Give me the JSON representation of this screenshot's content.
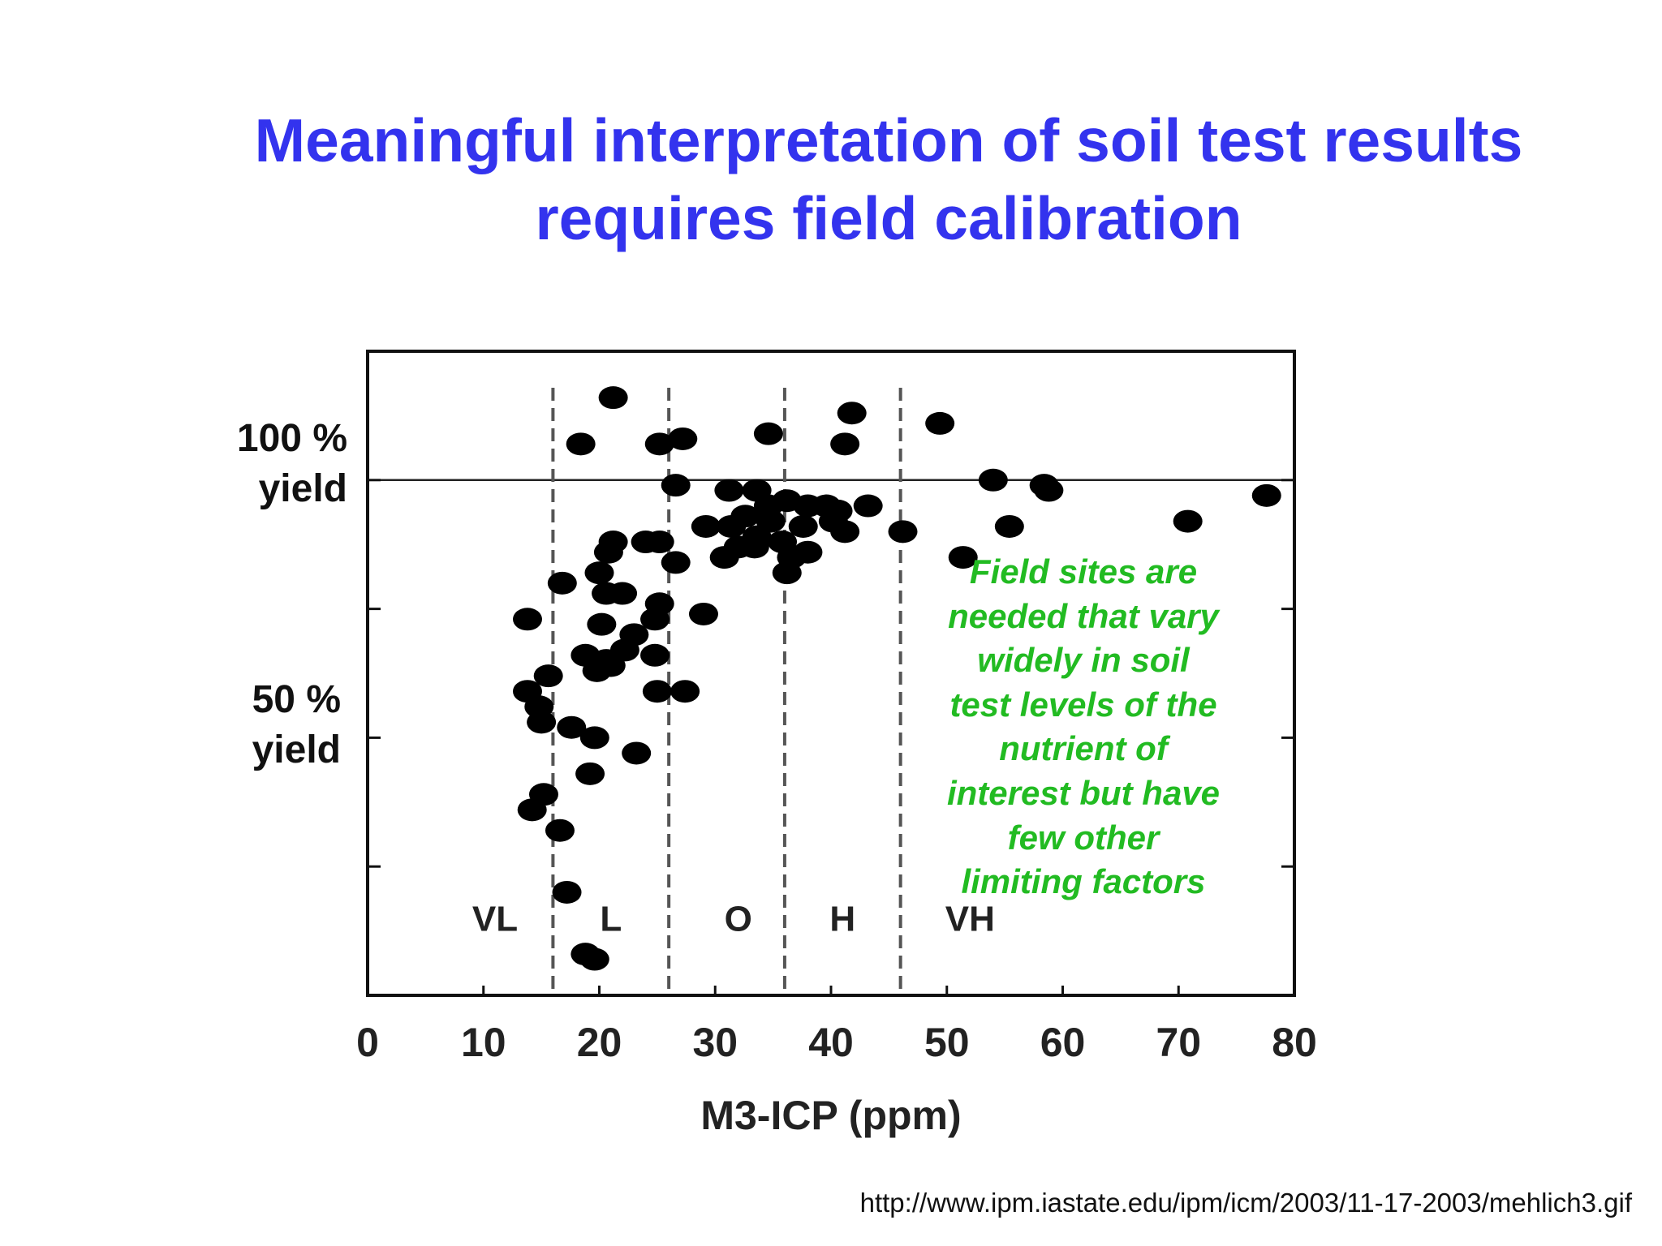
{
  "title_lines": [
    "Meaningful interpretation of soil test results",
    "requires field calibration"
  ],
  "y_labels": {
    "top": [
      "100 %",
      "yield"
    ],
    "bottom": [
      "50 %",
      "yield"
    ]
  },
  "annotation_lines": [
    "Field sites are",
    "needed that vary",
    "widely in soil",
    "test levels of the",
    "nutrient of",
    "interest but have",
    "few other",
    "limiting factors"
  ],
  "source_url": "http://www.ipm.iastate.edu/ipm/icm/2003/11-17-2003/mehlich3.gif",
  "colors": {
    "title": "#3333ee",
    "annotation": "#22bb22",
    "points": "#000000"
  },
  "chart_data": {
    "type": "scatter",
    "xlabel": "M3-ICP (ppm)",
    "x_ticks": [
      0,
      10,
      20,
      30,
      40,
      50,
      60,
      70,
      80
    ],
    "xlim": [
      0,
      80
    ],
    "ylim": [
      0,
      125
    ],
    "y_tick_values": [
      25,
      50,
      75,
      100
    ],
    "reference_line_y": 100,
    "category_boundaries": [
      16,
      26,
      36,
      46
    ],
    "categories": [
      {
        "label": "VL",
        "x": 11
      },
      {
        "label": "L",
        "x": 21
      },
      {
        "label": "O",
        "x": 32
      },
      {
        "label": "H",
        "x": 41
      },
      {
        "label": "VH",
        "x": 52
      }
    ],
    "points": [
      [
        21.2,
        116
      ],
      [
        18.4,
        107
      ],
      [
        25.2,
        107
      ],
      [
        27.2,
        108
      ],
      [
        34.6,
        109
      ],
      [
        41.8,
        113
      ],
      [
        41.2,
        107
      ],
      [
        49.4,
        111
      ],
      [
        26.6,
        99
      ],
      [
        31.2,
        98
      ],
      [
        33.6,
        98
      ],
      [
        36.2,
        96
      ],
      [
        38.0,
        95
      ],
      [
        39.6,
        95
      ],
      [
        40.6,
        94
      ],
      [
        43.2,
        95
      ],
      [
        34.6,
        95
      ],
      [
        32.6,
        93
      ],
      [
        54.0,
        100
      ],
      [
        58.8,
        98
      ],
      [
        58.4,
        99
      ],
      [
        77.6,
        97
      ],
      [
        70.8,
        92
      ],
      [
        55.4,
        91
      ],
      [
        46.2,
        90
      ],
      [
        29.2,
        91
      ],
      [
        31.4,
        91
      ],
      [
        34.8,
        92
      ],
      [
        37.6,
        91
      ],
      [
        40.2,
        92
      ],
      [
        41.2,
        90
      ],
      [
        33.6,
        89
      ],
      [
        35.8,
        88
      ],
      [
        32.0,
        87
      ],
      [
        24.0,
        88
      ],
      [
        25.2,
        88
      ],
      [
        21.2,
        88
      ],
      [
        20.8,
        86
      ],
      [
        38.0,
        86
      ],
      [
        51.4,
        85
      ],
      [
        30.8,
        85
      ],
      [
        36.6,
        85
      ],
      [
        26.6,
        84
      ],
      [
        33.4,
        87
      ],
      [
        20.0,
        82
      ],
      [
        16.8,
        80
      ],
      [
        20.6,
        78
      ],
      [
        22.0,
        78
      ],
      [
        36.2,
        82
      ],
      [
        29.0,
        74
      ],
      [
        20.2,
        72
      ],
      [
        24.8,
        73
      ],
      [
        25.2,
        76
      ],
      [
        23.0,
        70
      ],
      [
        22.2,
        67
      ],
      [
        18.8,
        66
      ],
      [
        20.6,
        65
      ],
      [
        19.8,
        63
      ],
      [
        21.0,
        64
      ],
      [
        24.8,
        66
      ],
      [
        13.8,
        73
      ],
      [
        15.6,
        62
      ],
      [
        13.8,
        59
      ],
      [
        14.8,
        56
      ],
      [
        15.0,
        53
      ],
      [
        17.6,
        52
      ],
      [
        19.6,
        50
      ],
      [
        23.2,
        47
      ],
      [
        19.2,
        43
      ],
      [
        15.2,
        39
      ],
      [
        14.2,
        36
      ],
      [
        16.6,
        32
      ],
      [
        17.2,
        20
      ],
      [
        18.8,
        8
      ],
      [
        19.6,
        7
      ],
      [
        25.0,
        59
      ],
      [
        27.4,
        59
      ]
    ]
  }
}
